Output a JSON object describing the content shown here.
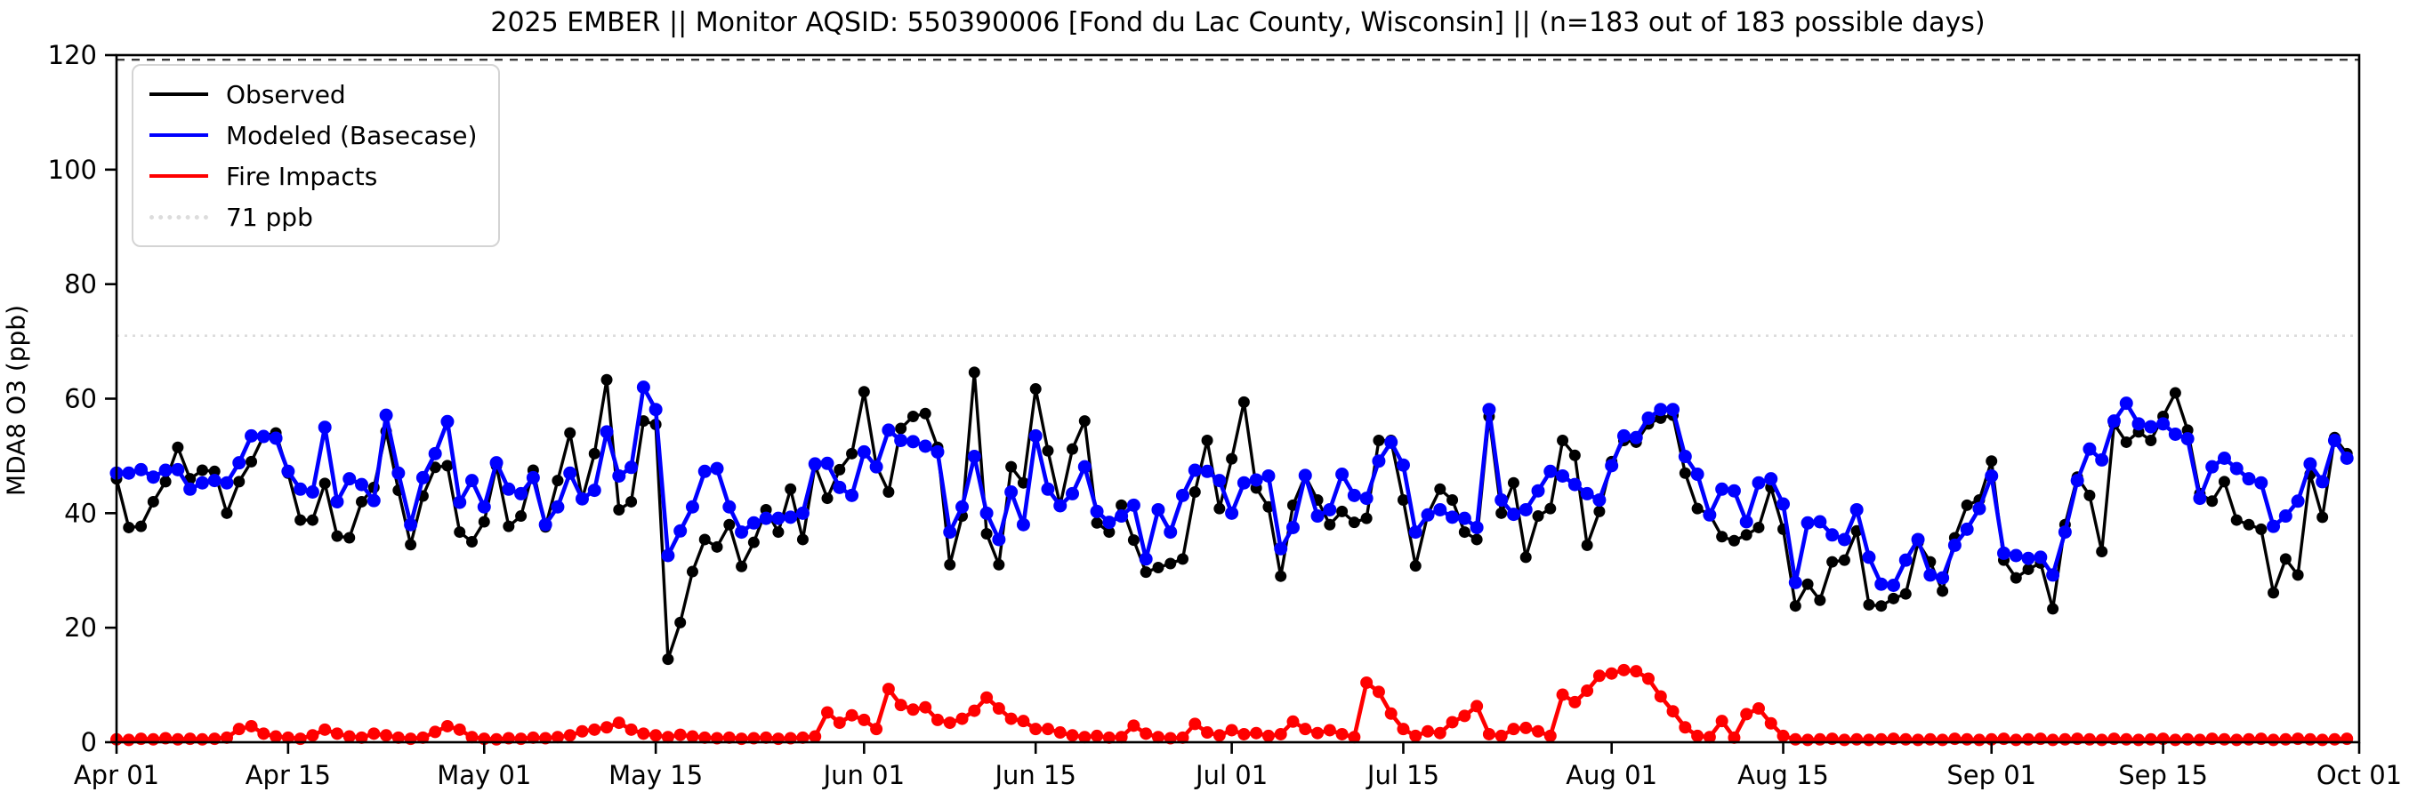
{
  "chart_data": {
    "type": "line",
    "title": "2025 EMBER || Monitor AQSID: 550390006 [Fond du Lac County, Wisconsin] || (n=183 out of 183 possible days)",
    "ylabel": "MDA8 O3 (ppb)",
    "xlabel": "",
    "ylim": [
      0,
      120
    ],
    "y_ticks": [
      0,
      20,
      40,
      60,
      80,
      100,
      120
    ],
    "x_tick_labels": [
      "Apr 01",
      "Apr 15",
      "May 01",
      "May 15",
      "Jun 01",
      "Jun 15",
      "Jul 01",
      "Jul 15",
      "Aug 01",
      "Aug 15",
      "Sep 01",
      "Sep 15",
      "Oct 01"
    ],
    "x_tick_day_index": [
      0,
      14,
      30,
      44,
      61,
      75,
      91,
      105,
      122,
      136,
      153,
      167,
      183
    ],
    "n_days": 183,
    "date_range": "Apr 01 - Oct 01",
    "grid": false,
    "legend_position": "upper left",
    "threshold": {
      "label": "71 ppb",
      "value": 71,
      "color": "#dcdcdc",
      "style": "dotted"
    },
    "top_dashed_line_value": 119.2,
    "series": [
      {
        "name": "Observed",
        "color": "#000000",
        "values": [
          46,
          37.5,
          37.7,
          42,
          45.5,
          51.5,
          46,
          47.5,
          47.3,
          40,
          45.5,
          49,
          53.5,
          54,
          47,
          38.8,
          38.8,
          45.2,
          36,
          35.7,
          42,
          44.5,
          54.3,
          44,
          34.5,
          43,
          48,
          48.3,
          36.7,
          35,
          38.5,
          48.3,
          37.7,
          39.5,
          47.5,
          37.6,
          45.7,
          54,
          42.4,
          50.4,
          63.3,
          40.6,
          42,
          56.1,
          55.5,
          14.5,
          20.9,
          29.8,
          35.4,
          34.1,
          38,
          30.7,
          34.9,
          40.6,
          36.7,
          44.2,
          35.4,
          48.3,
          42.6,
          47.6,
          50.4,
          61.2,
          48.3,
          43.7,
          54.8,
          56.9,
          57.4,
          51.5,
          31,
          39.5,
          64.6,
          36.4,
          31,
          48.1,
          45.3,
          61.7,
          50.9,
          41.4,
          51.2,
          56.1,
          38.3,
          36.7,
          41.4,
          35.3,
          29.7,
          30.5,
          31.2,
          32,
          43.7,
          52.7,
          40.8,
          49.5,
          59.4,
          44.4,
          41.1,
          29,
          41.4,
          46.5,
          42.3,
          38,
          40.3,
          38.4,
          39.1,
          52.7,
          52.7,
          42.3,
          30.8,
          39.8,
          44.2,
          42.3,
          36.7,
          35.4,
          56.9,
          40,
          45.3,
          32.3,
          39.5,
          40.8,
          52.7,
          50.1,
          34.4,
          40.3,
          49,
          52.7,
          52.4,
          55.6,
          56.6,
          57.1,
          47,
          40.8,
          39.8,
          35.9,
          35.2,
          36.2,
          37.5,
          44.5,
          37.2,
          23.8,
          27.6,
          24.8,
          31.5,
          31.8,
          36.9,
          24,
          23.8,
          25.1,
          25.9,
          34.9,
          31.5,
          26.4,
          35.7,
          41.4,
          42.3,
          49.1,
          31.8,
          28.7,
          30.2,
          31.3,
          23.3,
          38,
          46.3,
          43.1,
          33.3,
          55.6,
          52.4,
          54.2,
          52.7,
          56.9,
          61,
          54.5,
          43.4,
          42.1,
          45.5,
          38.8,
          38,
          37.2,
          26.1,
          32,
          29.2,
          46.8,
          39.3,
          53.2,
          50.4
        ]
      },
      {
        "name": "Modeled (Basecase)",
        "color": "#0000ff",
        "values": [
          47,
          47,
          47.6,
          46.3,
          47.5,
          47.6,
          44.2,
          45.3,
          45.7,
          45.3,
          48.8,
          53.5,
          53.4,
          53.1,
          47.3,
          44.2,
          43.7,
          55,
          42,
          46,
          45,
          42.2,
          57.1,
          47,
          38,
          46.2,
          50.4,
          56,
          41.9,
          45.7,
          41.1,
          48.8,
          44.2,
          43.4,
          46.2,
          38,
          41.1,
          47,
          42.5,
          44,
          54.2,
          46.5,
          48,
          62,
          58.1,
          32.6,
          36.9,
          41.1,
          47.3,
          47.8,
          41.1,
          36.7,
          38.3,
          39.1,
          39.1,
          39.3,
          40,
          48.6,
          48.7,
          44.5,
          43.1,
          50.7,
          48.1,
          54.5,
          52.7,
          52.5,
          51.7,
          50.7,
          36.7,
          41.1,
          49.9,
          40,
          35.4,
          43.7,
          38,
          53.5,
          44.2,
          41.3,
          43.4,
          48.1,
          40.3,
          38.4,
          39.5,
          41.4,
          32,
          40.6,
          36.7,
          43.1,
          47.5,
          47.3,
          45.7,
          40,
          45.3,
          45.8,
          46.5,
          33.8,
          37.5,
          46.6,
          39.5,
          40.6,
          46.8,
          43.1,
          42.6,
          49.1,
          52.4,
          48.4,
          36.7,
          39.7,
          40.6,
          39.3,
          39.1,
          37.5,
          58.1,
          42.3,
          39.8,
          40.6,
          43.9,
          47.3,
          46.5,
          45,
          43.4,
          42.3,
          48.3,
          53.5,
          53.2,
          56.6,
          58.1,
          58.1,
          49.9,
          46.8,
          39.7,
          44.2,
          43.9,
          38.5,
          45.3,
          46,
          41.6,
          27.9,
          38.3,
          38.5,
          36.2,
          35.4,
          40.6,
          32.3,
          27.6,
          27.4,
          31.8,
          35.4,
          29.2,
          28.7,
          34.4,
          37.2,
          40.8,
          46.5,
          33,
          32.6,
          32.1,
          32.3,
          29.2,
          36.7,
          45.7,
          51.2,
          49.3,
          56.1,
          59.2,
          55.6,
          55.1,
          55.6,
          53.8,
          53,
          42.6,
          48.1,
          49.6,
          47.8,
          46,
          45.3,
          37.7,
          39.5,
          42.1,
          48.6,
          45.5,
          52.7,
          49.6
        ]
      },
      {
        "name": "Fire Impacts",
        "color": "#ff0000",
        "values": [
          0.5,
          0.4,
          0.6,
          0.5,
          0.7,
          0.5,
          0.6,
          0.5,
          0.6,
          0.8,
          2.3,
          2.8,
          1.5,
          1,
          0.8,
          0.6,
          1.2,
          2.2,
          1.5,
          1,
          0.8,
          1.5,
          1.2,
          0.8,
          0.6,
          0.8,
          1.8,
          2.8,
          2.2,
          0.9,
          0.6,
          0.5,
          0.7,
          0.6,
          0.8,
          0.7,
          0.9,
          1.2,
          1.9,
          2.2,
          2.6,
          3.4,
          2.2,
          1.5,
          1.2,
          0.9,
          1.3,
          1,
          0.8,
          0.7,
          0.8,
          0.6,
          0.7,
          0.8,
          0.6,
          0.7,
          0.8,
          1,
          5.2,
          3.4,
          4.7,
          3.9,
          2.3,
          9.3,
          6.5,
          5.7,
          6.1,
          3.9,
          3.4,
          4.1,
          5.5,
          7.8,
          5.9,
          4.1,
          3.7,
          2.3,
          2.3,
          1.7,
          1.2,
          0.9,
          1.1,
          0.8,
          0.9,
          2.9,
          1.5,
          0.9,
          0.7,
          0.8,
          3.2,
          1.7,
          1.2,
          2.1,
          1.4,
          1.6,
          1.1,
          1.4,
          3.6,
          2.3,
          1.6,
          2.1,
          1.4,
          0.9,
          10.4,
          8.8,
          5,
          2.3,
          1.1,
          1.9,
          1.6,
          3.5,
          4.6,
          6.3,
          1.4,
          1.1,
          2.3,
          2.5,
          1.9,
          1.1,
          8.3,
          7,
          9,
          11.6,
          12,
          12.6,
          12.4,
          11.1,
          8,
          5.4,
          2.6,
          1.1,
          0.9,
          3.7,
          0.8,
          4.9,
          5.9,
          3.3,
          1.1,
          0.5,
          0.4,
          0.5,
          0.6,
          0.4,
          0.5,
          0.4,
          0.5,
          0.6,
          0.5,
          0.4,
          0.5,
          0.4,
          0.6,
          0.5,
          0.4,
          0.5,
          0.6,
          0.4,
          0.5,
          0.6,
          0.4,
          0.5,
          0.6,
          0.5,
          0.4,
          0.6,
          0.5,
          0.4,
          0.5,
          0.6,
          0.4,
          0.5,
          0.4,
          0.6,
          0.5,
          0.4,
          0.5,
          0.6,
          0.4,
          0.5,
          0.6,
          0.5,
          0.4,
          0.5,
          0.6
        ]
      }
    ],
    "legend_entries": [
      "Observed",
      "Modeled (Basecase)",
      "Fire Impacts",
      "71 ppb"
    ]
  },
  "colors": {
    "observed": "#000000",
    "modeled": "#0000ff",
    "fire": "#ff0000",
    "threshold": "#dcdcdc",
    "top_dash": "#3c3c3c",
    "axis": "#000000",
    "legend_border": "#d4d4d4"
  }
}
